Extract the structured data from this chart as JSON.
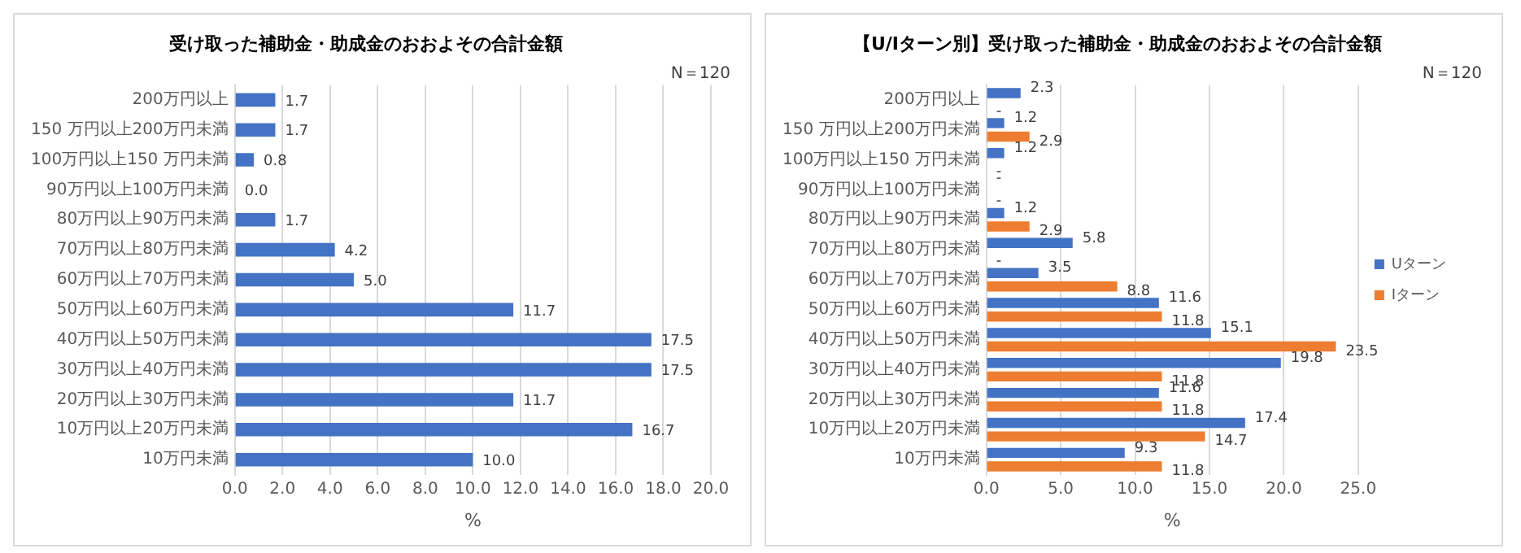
{
  "chart_data": [
    {
      "type": "bar",
      "orientation": "horizontal",
      "title": "受け取った補助金・助成金のおおよその合計金額",
      "xlabel": "%",
      "annotations": [
        "N＝120"
      ],
      "categories": [
        "200万円以上",
        "150 万円以上200万円未満",
        "100万円以上150 万円未満",
        "90万円以上100万円未満",
        "80万円以上90万円未満",
        "70万円以上80万円未満",
        "60万円以上70万円未満",
        "50万円以上60万円未満",
        "40万円以上50万円未満",
        "30万円以上40万円未満",
        "20万円以上30万円未満",
        "10万円以上20万円未満",
        "10万円未満"
      ],
      "series": [
        {
          "color": "#4472c4",
          "values": [
            1.7,
            1.7,
            0.8,
            0.0,
            1.7,
            4.2,
            5.0,
            11.7,
            17.5,
            17.5,
            11.7,
            16.7,
            10.0
          ],
          "value_labels": [
            "1.7",
            "1.7",
            "0.8",
            "0.0",
            "1.7",
            "4.2",
            "5.0",
            "11.7",
            "17.5",
            "17.5",
            "11.7",
            "16.7",
            "10.0"
          ]
        }
      ],
      "xlim": [
        0,
        20
      ],
      "xticks": [
        {
          "value": 0,
          "label": "0.0"
        },
        {
          "value": 2,
          "label": "2.0"
        },
        {
          "value": 4,
          "label": "4.0"
        },
        {
          "value": 6,
          "label": "6.0"
        },
        {
          "value": 8,
          "label": "8.0"
        },
        {
          "value": 10,
          "label": "10.0"
        },
        {
          "value": 12,
          "label": "12.0"
        },
        {
          "value": 14,
          "label": "14.0"
        },
        {
          "value": 16,
          "label": "16.0"
        },
        {
          "value": 18,
          "label": "18.0"
        },
        {
          "value": 20,
          "label": "20.0"
        }
      ],
      "grid": "x"
    },
    {
      "type": "bar",
      "orientation": "horizontal",
      "title": "【U/Iターン別】受け取った補助金・助成金のおおよその合計金額",
      "xlabel": "%",
      "annotations": [
        "N＝120"
      ],
      "categories": [
        "200万円以上",
        "150 万円以上200万円未満",
        "100万円以上150 万円未満",
        "90万円以上100万円未満",
        "80万円以上90万円未満",
        "70万円以上80万円未満",
        "60万円以上70万円未満",
        "50万円以上60万円未満",
        "40万円以上50万円未満",
        "30万円以上40万円未満",
        "20万円以上30万円未満",
        "10万円以上20万円未満",
        "10万円未満"
      ],
      "series": [
        {
          "name": "Uターン",
          "color": "#4472c4",
          "values": [
            2.3,
            1.2,
            1.2,
            0,
            1.2,
            5.8,
            3.5,
            11.6,
            15.1,
            19.8,
            11.6,
            17.4,
            9.3
          ],
          "value_labels": [
            "2.3",
            "1.2",
            "1.2",
            "-",
            "1.2",
            "5.8",
            "3.5",
            "11.6",
            "15.1",
            "19.8",
            "11.6",
            "17.4",
            "9.3"
          ]
        },
        {
          "name": "Iターン",
          "color": "#ed7d31",
          "values": [
            0,
            2.9,
            0,
            0,
            2.9,
            0,
            8.8,
            11.8,
            23.5,
            11.8,
            11.8,
            14.7,
            11.8
          ],
          "value_labels": [
            "-",
            "2.9",
            "-",
            "-",
            "2.9",
            "-",
            "8.8",
            "11.8",
            "23.5",
            "11.8",
            "11.8",
            "14.7",
            "11.8"
          ]
        }
      ],
      "xlim": [
        0,
        25
      ],
      "xticks": [
        {
          "value": 0,
          "label": "0.0"
        },
        {
          "value": 5,
          "label": "5.0"
        },
        {
          "value": 10,
          "label": "10.0"
        },
        {
          "value": 15,
          "label": "15.0"
        },
        {
          "value": 20,
          "label": "20.0"
        },
        {
          "value": 25,
          "label": "25.0"
        }
      ],
      "grid": "x",
      "legend": "right"
    }
  ]
}
